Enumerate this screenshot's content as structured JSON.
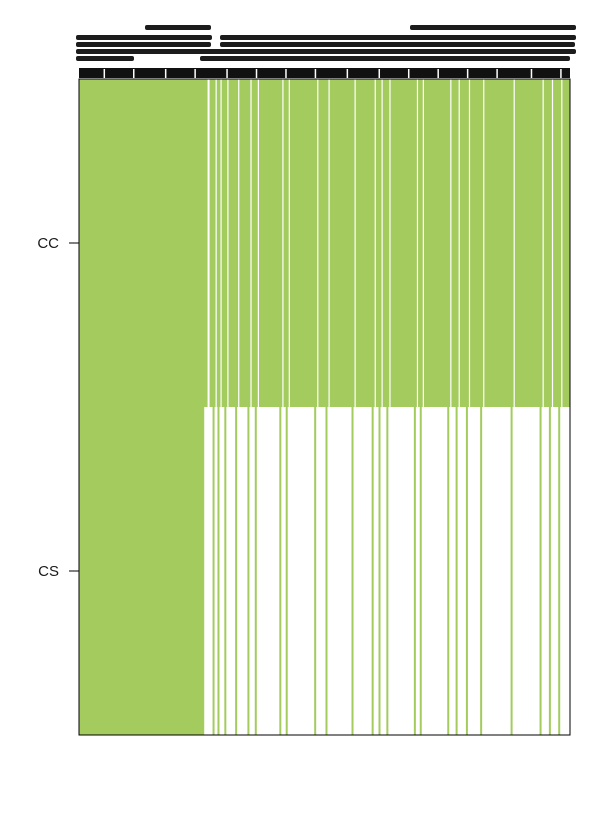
{
  "chart_data": {
    "type": "heatmap",
    "title": "",
    "xlabel": "",
    "ylabel": "",
    "rows": [
      "CC",
      "CS"
    ],
    "columns_note": "",
    "fill_color": "#a3cb5e",
    "empty_color": "#ffffff",
    "grid": false,
    "legend": "none",
    "top_block": {
      "filled_fraction_x": [
        0.0,
        1.0
      ]
    },
    "bottom_block": {
      "filled_fraction_x": [
        0.0,
        0.255
      ]
    },
    "thin_lines_fraction_x": [
      0.272,
      0.282,
      0.296,
      0.318,
      0.343,
      0.358,
      0.408,
      0.421,
      0.479,
      0.502,
      0.555,
      0.596,
      0.61,
      0.626,
      0.682,
      0.694,
      0.75,
      0.767,
      0.788,
      0.817,
      0.879,
      0.938,
      0.957,
      0.976
    ]
  }
}
